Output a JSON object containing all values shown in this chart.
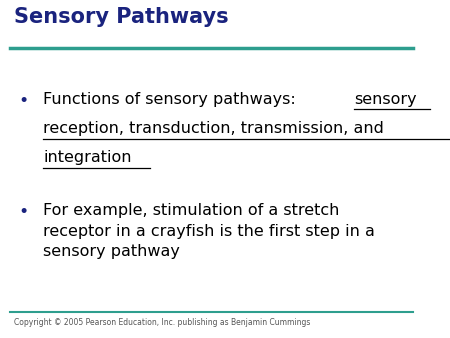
{
  "title": "Sensory Pathways",
  "title_color": "#1a237e",
  "title_fontsize": 15,
  "background_color": "#ffffff",
  "top_line_color": "#2e9e8e",
  "bottom_line_color": "#2e9e8e",
  "copyright_text": "Copyright © 2005 Pearson Education, Inc. publishing as Benjamin Cummings",
  "copyright_fontsize": 5.5,
  "copyright_color": "#555555",
  "bullet_color": "#1a237e",
  "line1_normal": "Functions of sensory pathways: ",
  "line1_under": "sensory",
  "line2_under": "reception, transduction, transmission, and",
  "line3_under": "integration",
  "bullet2": "For example, stimulation of a stretch\nreceptor in a crayfish is the first step in a\nsensory pathway",
  "text_color": "#000000",
  "text_fontsize": 11.5
}
